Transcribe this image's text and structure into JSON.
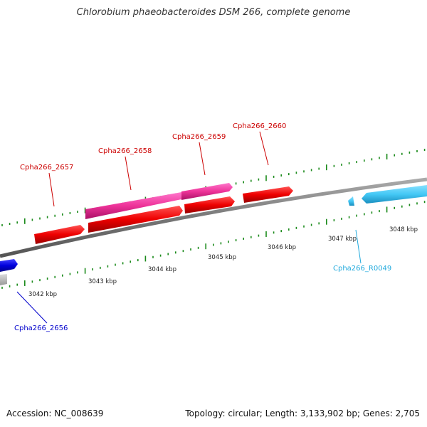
{
  "title": "Chlorobium phaeobacteroides DSM 266, complete genome",
  "footer": {
    "accession": "Accession: NC_008639",
    "topology": "Topology: circular; Length: 3,133,902 bp; Genes: 2,705"
  },
  "colors": {
    "backbone": "#7a7a7a",
    "ticks": "#1a8a1a",
    "cds": "#ff0000",
    "pink": "#ee3399",
    "rna": "#44c8f5",
    "blue": "#0000dd",
    "grey": "#bbbbbb",
    "red_label": "#cc0000",
    "cyan_label": "#22aadd",
    "blue_label": "#0000cc"
  },
  "scale_labels": [
    "3042 kbp",
    "3043 kbp",
    "3044 kbp",
    "3045 kbp",
    "3046 kbp",
    "3047 kbp",
    "3048 kbp"
  ],
  "gene_labels": [
    {
      "name": "Cpha266_2657",
      "color": "red"
    },
    {
      "name": "Cpha266_2658",
      "color": "red"
    },
    {
      "name": "Cpha266_2659",
      "color": "red"
    },
    {
      "name": "Cpha266_2660",
      "color": "red"
    },
    {
      "name": "Cpha266_R0049",
      "color": "cyan"
    },
    {
      "name": "Cpha266_2656",
      "color": "blue"
    }
  ]
}
